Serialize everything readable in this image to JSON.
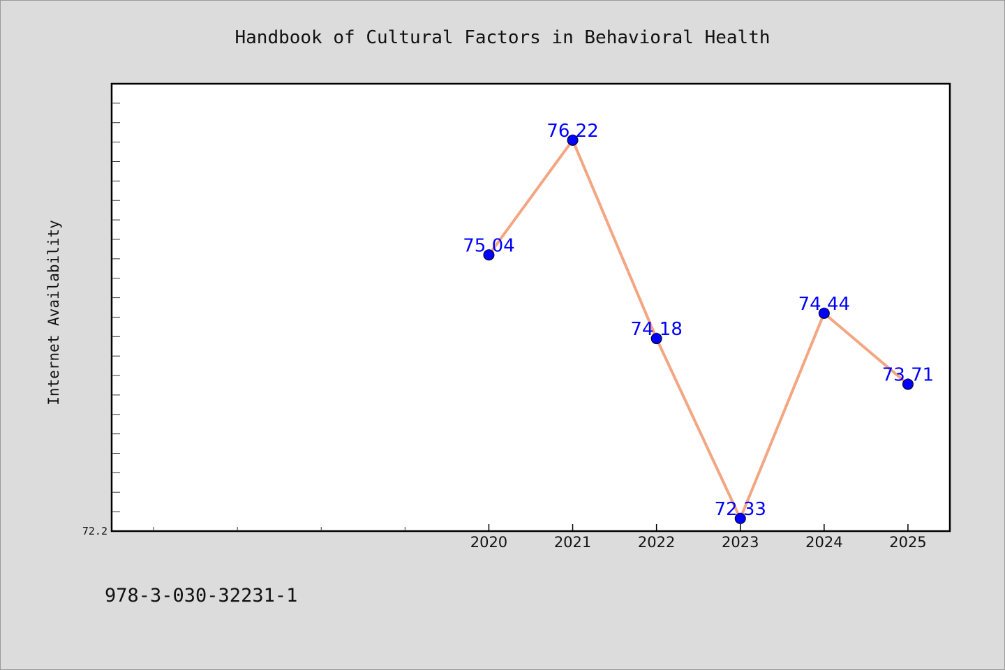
{
  "chart_data": {
    "type": "line",
    "title": "Handbook of Cultural Factors in Behavioral Health",
    "xlabel": "",
    "ylabel": "Internet Availability",
    "x": [
      "2020",
      "2021",
      "2022",
      "2023",
      "2024",
      "2025"
    ],
    "x_index": [
      4.5,
      5.5,
      6.5,
      7.5,
      8.5,
      9.5
    ],
    "xlim": [
      0,
      10
    ],
    "minor_xticks": [
      0.5,
      1.5,
      2.5,
      3.5
    ],
    "values": [
      75.04,
      76.22,
      74.18,
      72.33,
      74.44,
      73.71
    ],
    "labels": [
      "75.04",
      "76.22",
      "74.18",
      "72.33",
      "74.44",
      "73.71"
    ],
    "ylim": [
      72.2,
      76.8
    ],
    "ytick_labels": [
      {
        "value": 72.2,
        "text": "72.2"
      }
    ],
    "minor_ytick_step": 0.2,
    "line_color": "#f4a582",
    "marker_color": "#0000ff",
    "grid": false,
    "legend": "none"
  },
  "footer": {
    "isbn": "978-3-030-32231-1"
  }
}
